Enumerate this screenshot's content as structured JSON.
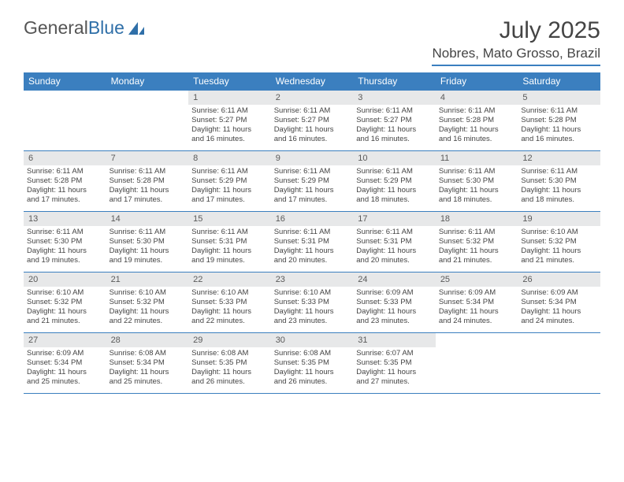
{
  "logo": {
    "text1": "General",
    "text2": "Blue"
  },
  "title": "July 2025",
  "location": "Nobres, Mato Grosso, Brazil",
  "colors": {
    "header_bg": "#3b7fbf",
    "header_text": "#ffffff",
    "daynum_bg": "#e7e8e9",
    "border": "#3b7fbf",
    "logo_blue": "#2f6fa8"
  },
  "weekdays": [
    "Sunday",
    "Monday",
    "Tuesday",
    "Wednesday",
    "Thursday",
    "Friday",
    "Saturday"
  ],
  "first_weekday_index": 2,
  "days": [
    {
      "n": 1,
      "sunrise": "6:11 AM",
      "sunset": "5:27 PM",
      "daylight": "11 hours and 16 minutes."
    },
    {
      "n": 2,
      "sunrise": "6:11 AM",
      "sunset": "5:27 PM",
      "daylight": "11 hours and 16 minutes."
    },
    {
      "n": 3,
      "sunrise": "6:11 AM",
      "sunset": "5:27 PM",
      "daylight": "11 hours and 16 minutes."
    },
    {
      "n": 4,
      "sunrise": "6:11 AM",
      "sunset": "5:28 PM",
      "daylight": "11 hours and 16 minutes."
    },
    {
      "n": 5,
      "sunrise": "6:11 AM",
      "sunset": "5:28 PM",
      "daylight": "11 hours and 16 minutes."
    },
    {
      "n": 6,
      "sunrise": "6:11 AM",
      "sunset": "5:28 PM",
      "daylight": "11 hours and 17 minutes."
    },
    {
      "n": 7,
      "sunrise": "6:11 AM",
      "sunset": "5:28 PM",
      "daylight": "11 hours and 17 minutes."
    },
    {
      "n": 8,
      "sunrise": "6:11 AM",
      "sunset": "5:29 PM",
      "daylight": "11 hours and 17 minutes."
    },
    {
      "n": 9,
      "sunrise": "6:11 AM",
      "sunset": "5:29 PM",
      "daylight": "11 hours and 17 minutes."
    },
    {
      "n": 10,
      "sunrise": "6:11 AM",
      "sunset": "5:29 PM",
      "daylight": "11 hours and 18 minutes."
    },
    {
      "n": 11,
      "sunrise": "6:11 AM",
      "sunset": "5:30 PM",
      "daylight": "11 hours and 18 minutes."
    },
    {
      "n": 12,
      "sunrise": "6:11 AM",
      "sunset": "5:30 PM",
      "daylight": "11 hours and 18 minutes."
    },
    {
      "n": 13,
      "sunrise": "6:11 AM",
      "sunset": "5:30 PM",
      "daylight": "11 hours and 19 minutes."
    },
    {
      "n": 14,
      "sunrise": "6:11 AM",
      "sunset": "5:30 PM",
      "daylight": "11 hours and 19 minutes."
    },
    {
      "n": 15,
      "sunrise": "6:11 AM",
      "sunset": "5:31 PM",
      "daylight": "11 hours and 19 minutes."
    },
    {
      "n": 16,
      "sunrise": "6:11 AM",
      "sunset": "5:31 PM",
      "daylight": "11 hours and 20 minutes."
    },
    {
      "n": 17,
      "sunrise": "6:11 AM",
      "sunset": "5:31 PM",
      "daylight": "11 hours and 20 minutes."
    },
    {
      "n": 18,
      "sunrise": "6:11 AM",
      "sunset": "5:32 PM",
      "daylight": "11 hours and 21 minutes."
    },
    {
      "n": 19,
      "sunrise": "6:10 AM",
      "sunset": "5:32 PM",
      "daylight": "11 hours and 21 minutes."
    },
    {
      "n": 20,
      "sunrise": "6:10 AM",
      "sunset": "5:32 PM",
      "daylight": "11 hours and 21 minutes."
    },
    {
      "n": 21,
      "sunrise": "6:10 AM",
      "sunset": "5:32 PM",
      "daylight": "11 hours and 22 minutes."
    },
    {
      "n": 22,
      "sunrise": "6:10 AM",
      "sunset": "5:33 PM",
      "daylight": "11 hours and 22 minutes."
    },
    {
      "n": 23,
      "sunrise": "6:10 AM",
      "sunset": "5:33 PM",
      "daylight": "11 hours and 23 minutes."
    },
    {
      "n": 24,
      "sunrise": "6:09 AM",
      "sunset": "5:33 PM",
      "daylight": "11 hours and 23 minutes."
    },
    {
      "n": 25,
      "sunrise": "6:09 AM",
      "sunset": "5:34 PM",
      "daylight": "11 hours and 24 minutes."
    },
    {
      "n": 26,
      "sunrise": "6:09 AM",
      "sunset": "5:34 PM",
      "daylight": "11 hours and 24 minutes."
    },
    {
      "n": 27,
      "sunrise": "6:09 AM",
      "sunset": "5:34 PM",
      "daylight": "11 hours and 25 minutes."
    },
    {
      "n": 28,
      "sunrise": "6:08 AM",
      "sunset": "5:34 PM",
      "daylight": "11 hours and 25 minutes."
    },
    {
      "n": 29,
      "sunrise": "6:08 AM",
      "sunset": "5:35 PM",
      "daylight": "11 hours and 26 minutes."
    },
    {
      "n": 30,
      "sunrise": "6:08 AM",
      "sunset": "5:35 PM",
      "daylight": "11 hours and 26 minutes."
    },
    {
      "n": 31,
      "sunrise": "6:07 AM",
      "sunset": "5:35 PM",
      "daylight": "11 hours and 27 minutes."
    }
  ],
  "labels": {
    "sunrise": "Sunrise:",
    "sunset": "Sunset:",
    "daylight": "Daylight:"
  }
}
